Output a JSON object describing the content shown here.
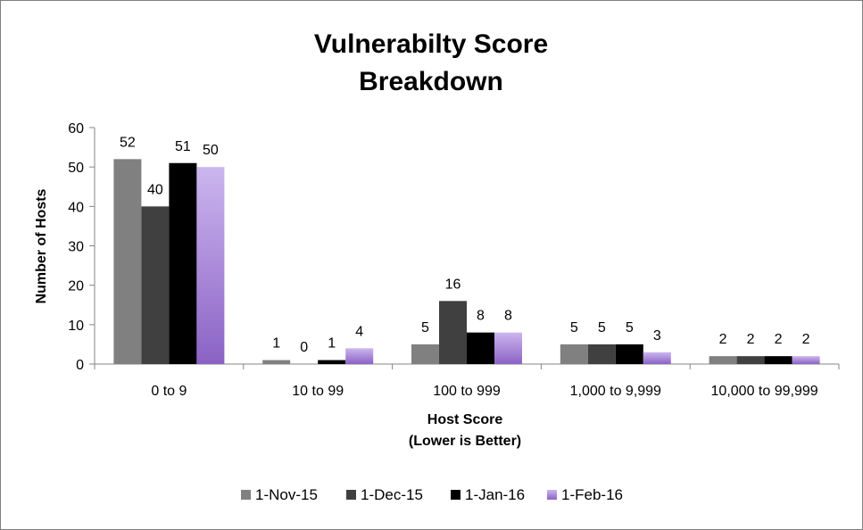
{
  "chart_data": {
    "type": "bar",
    "title": [
      "Vulnerabilty Score",
      "Breakdown"
    ],
    "xlabel": [
      "Host Score",
      "(Lower is Better)"
    ],
    "ylabel": "Number of Hosts",
    "ylim": [
      0,
      60
    ],
    "yticks": [
      0,
      10,
      20,
      30,
      40,
      50,
      60
    ],
    "categories": [
      "0 to 9",
      "10 to 99",
      "100 to 999",
      "1,000 to 9,999",
      "10,000 to 99,999"
    ],
    "series": [
      {
        "name": "1-Nov-15",
        "color": "#808080",
        "values": [
          52,
          1,
          5,
          5,
          2
        ]
      },
      {
        "name": "1-Dec-15",
        "color": "#404040",
        "values": [
          40,
          0,
          16,
          5,
          2
        ]
      },
      {
        "name": "1-Jan-16",
        "color": "#000000",
        "values": [
          51,
          1,
          8,
          5,
          2
        ]
      },
      {
        "name": "1-Feb-16",
        "color": "#b49ae0",
        "values": [
          50,
          4,
          8,
          3,
          2
        ]
      }
    ],
    "grid": false,
    "legend_position": "bottom",
    "data_labels": true
  }
}
